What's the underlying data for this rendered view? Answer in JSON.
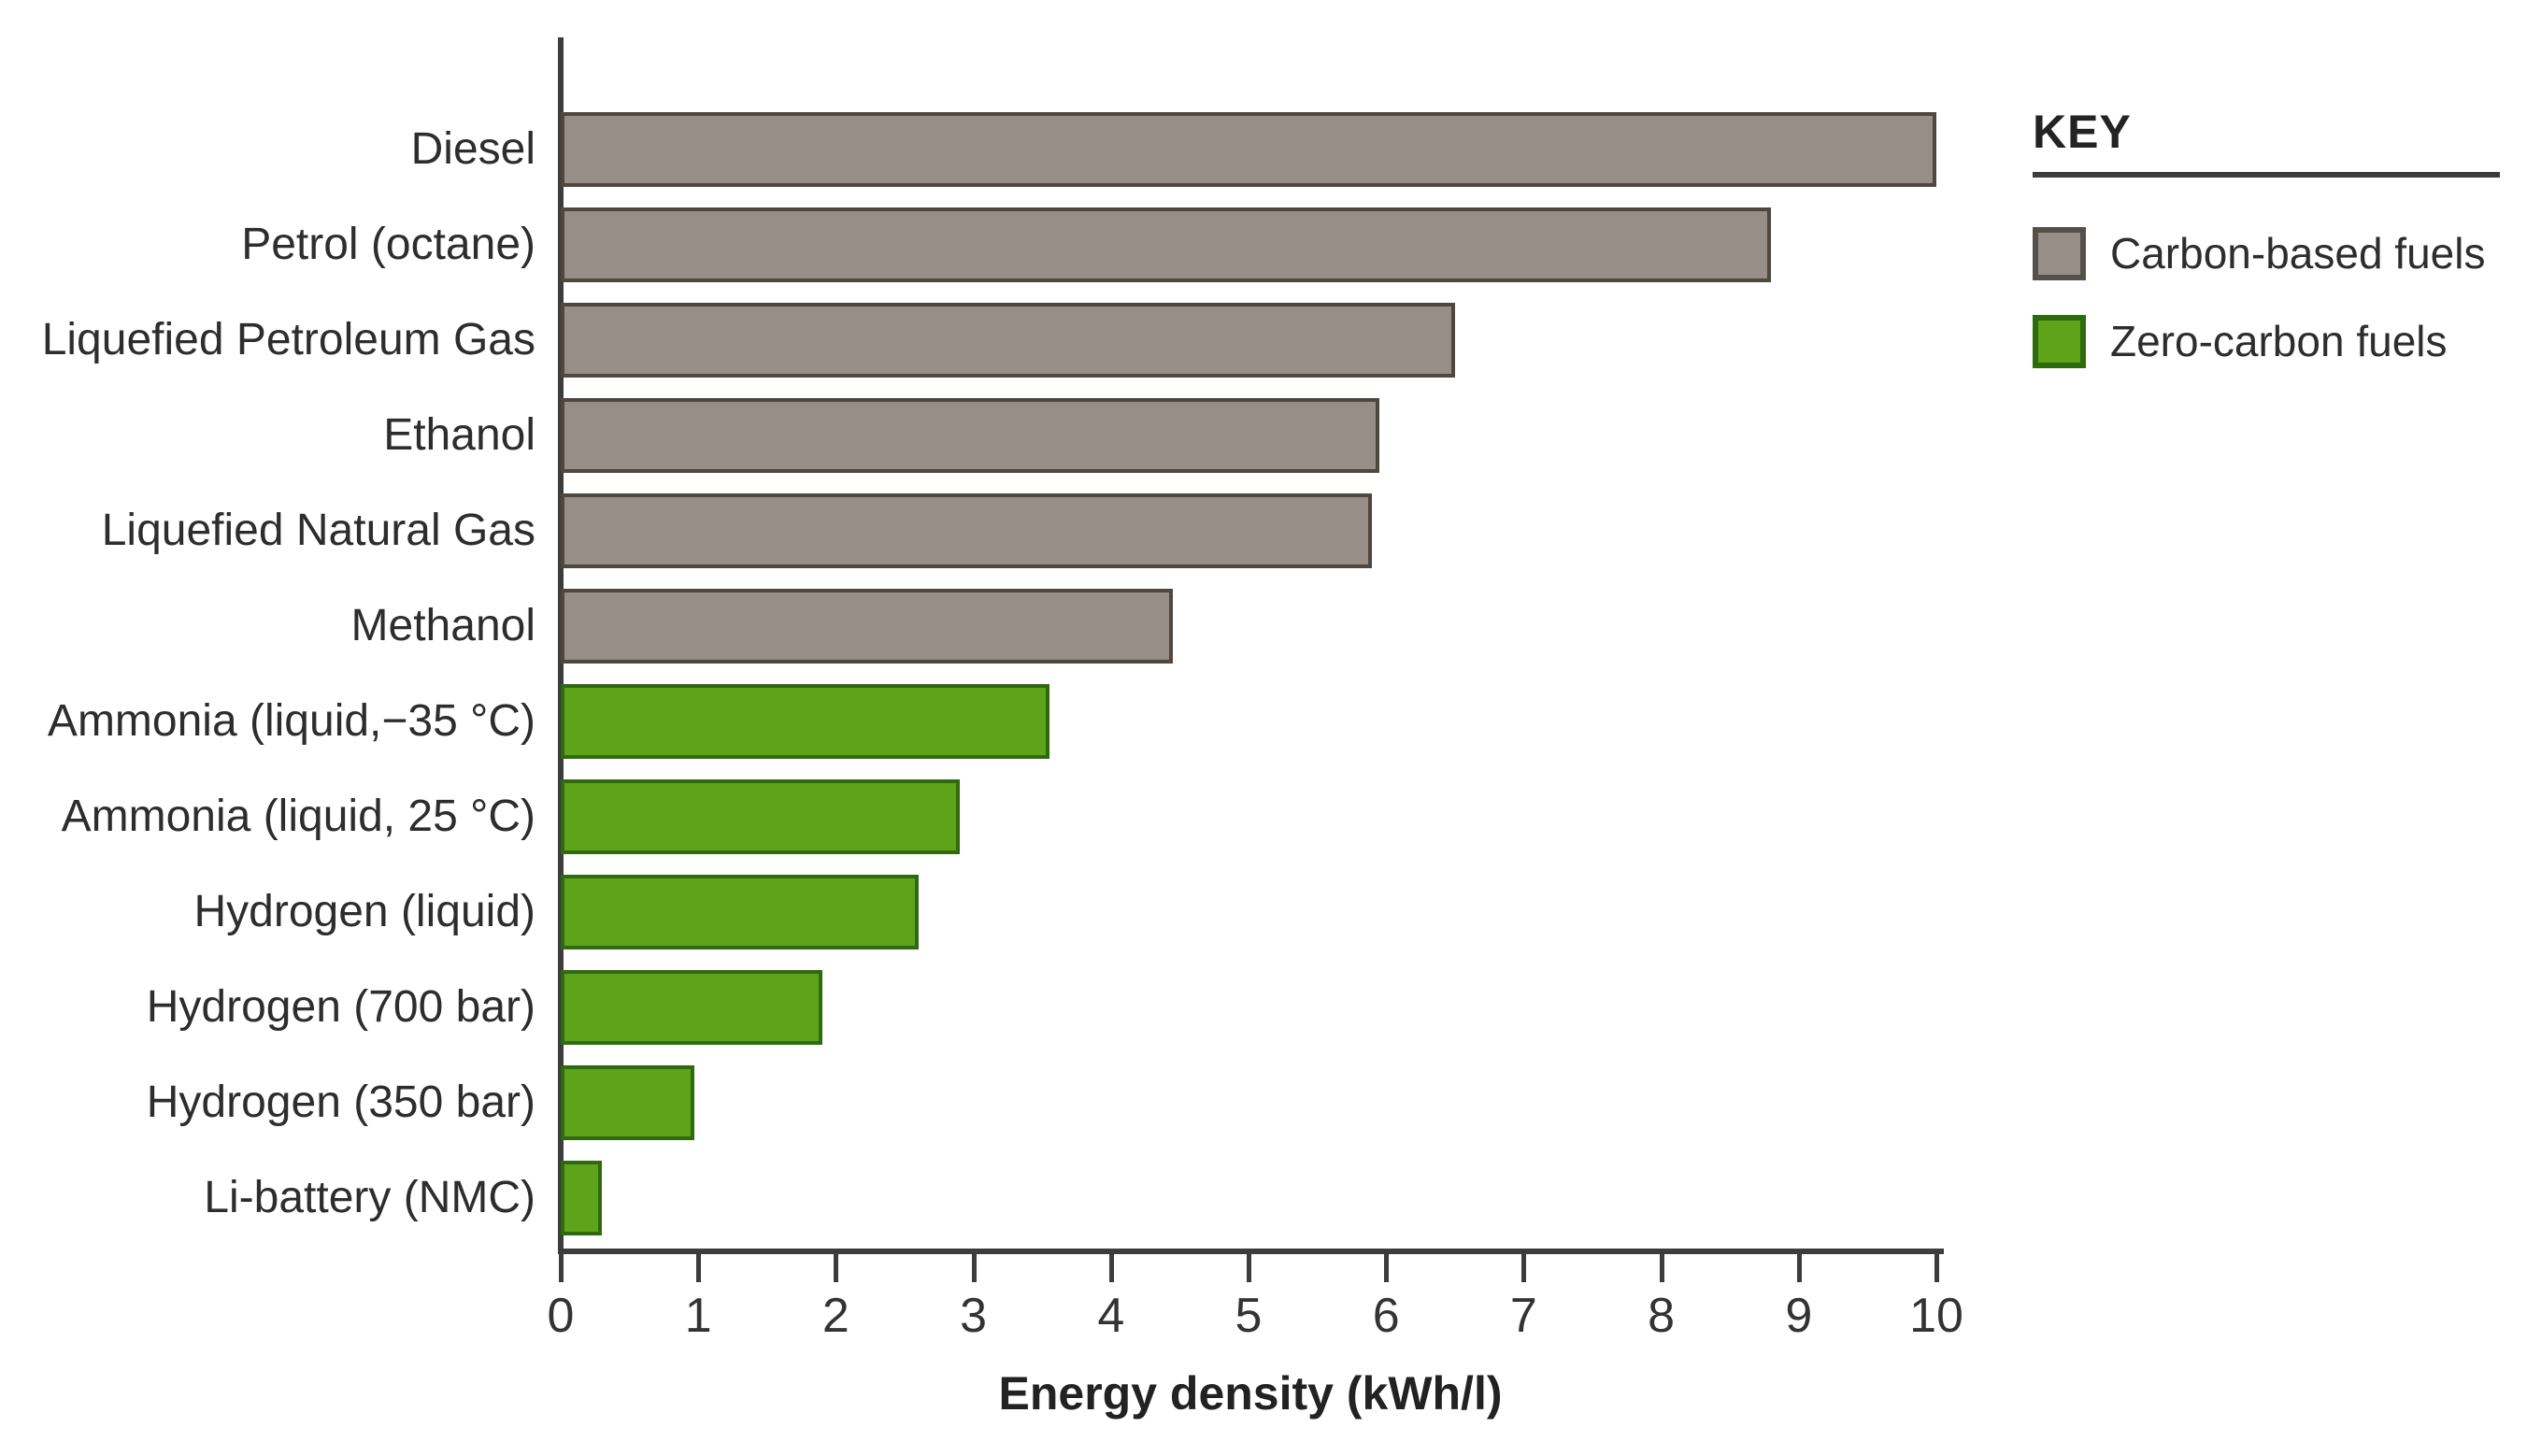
{
  "chart_data": {
    "type": "bar",
    "orientation": "horizontal",
    "title": "",
    "xlabel": "Energy density (kWh/l)",
    "ylabel": "",
    "xlim": [
      0,
      10
    ],
    "xticks": [
      0,
      1,
      2,
      3,
      4,
      5,
      6,
      7,
      8,
      9,
      10
    ],
    "grid": false,
    "legend_position": "top-right",
    "categories": [
      "Diesel",
      "Petrol (octane)",
      "Liquefied Petroleum Gas",
      "Ethanol",
      "Liquefied Natural Gas",
      "Methanol",
      "Ammonia (liquid,−35 °C)",
      "Ammonia (liquid, 25 °C)",
      "Hydrogen (liquid)",
      "Hydrogen (700 bar)",
      "Hydrogen (350 bar)",
      "Li-battery (NMC)"
    ],
    "values": [
      10.0,
      8.8,
      6.5,
      5.95,
      5.9,
      4.45,
      3.55,
      2.9,
      2.6,
      1.9,
      0.97,
      0.3
    ],
    "groups": [
      "carbon",
      "carbon",
      "carbon",
      "carbon",
      "carbon",
      "carbon",
      "zero",
      "zero",
      "zero",
      "zero",
      "zero",
      "zero"
    ],
    "colors": {
      "carbon": "#978e88",
      "zero": "#5fa31b"
    },
    "border_colors": {
      "carbon": "#4f473e",
      "zero": "#2f6a10"
    }
  },
  "legend": {
    "title": "KEY",
    "items": [
      {
        "label": "Carbon-based fuels",
        "group": "carbon"
      },
      {
        "label": "Zero-carbon fuels",
        "group": "zero"
      }
    ]
  }
}
